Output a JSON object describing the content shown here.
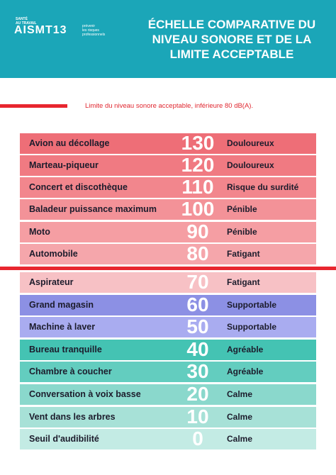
{
  "header": {
    "logo_top": "SANTÉ\nAU TRAVAIL",
    "logo": "AISMT13",
    "logo_tagline": "prévenir\nles risques\nprofessionnels",
    "title": "ÉCHELLE COMPARATIVE DU NIVEAU SONORE ET DE LA LIMITE ACCEPTABLE"
  },
  "note": "Limite du niveau sonore acceptable, inférieure 80 dB(A).",
  "rows": [
    {
      "label": "Avion au décollage",
      "level": 130,
      "category": "Douloureux"
    },
    {
      "label": "Marteau-piqueur",
      "level": 120,
      "category": "Douloureux"
    },
    {
      "label": "Concert et discothèque",
      "level": 110,
      "category": "Risque du surdité"
    },
    {
      "label": "Baladeur puissance maximum",
      "level": 100,
      "category": "Pénible"
    },
    {
      "label": "Moto",
      "level": 90,
      "category": "Pénible"
    },
    {
      "label": "Automobile",
      "level": 80,
      "category": "Fatigant"
    },
    {
      "label": "Aspirateur",
      "level": 70,
      "category": "Fatigant"
    },
    {
      "label": "Grand magasin",
      "level": 60,
      "category": "Supportable"
    },
    {
      "label": "Machine à laver",
      "level": 50,
      "category": "Supportable"
    },
    {
      "label": "Bureau tranquille",
      "level": 40,
      "category": "Agréable"
    },
    {
      "label": "Chambre à coucher",
      "level": 30,
      "category": "Agréable"
    },
    {
      "label": "Conversation à voix basse",
      "level": 20,
      "category": "Calme"
    },
    {
      "label": "Vent dans les arbres",
      "level": 10,
      "category": "Calme"
    },
    {
      "label": "Seuil d'audibilité",
      "level": 0,
      "category": "Calme"
    }
  ]
}
